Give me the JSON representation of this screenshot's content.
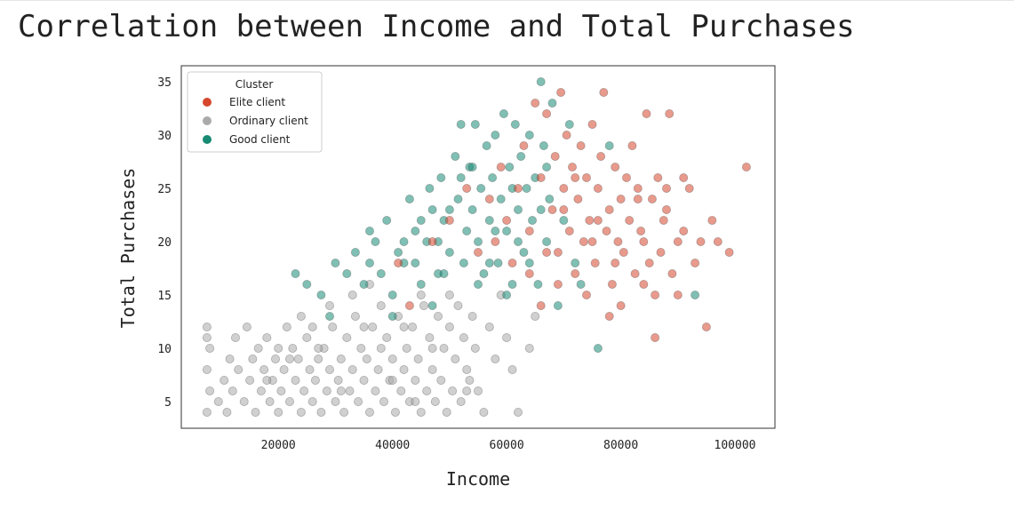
{
  "chart_data": {
    "type": "scatter",
    "title": "Correlation between Income and Total Purchases",
    "xlabel": "Income",
    "ylabel": "Total Purchases",
    "xlim": [
      3000,
      107000
    ],
    "ylim": [
      2.5,
      36.5
    ],
    "xticks": [
      20000,
      40000,
      60000,
      80000,
      100000
    ],
    "yticks": [
      5,
      10,
      15,
      20,
      25,
      30,
      35
    ],
    "grid": false,
    "legend": {
      "title": "Cluster",
      "placement": "top-left"
    },
    "series": [
      {
        "name": "Ordinary client",
        "color": "#aaaaaa",
        "points": [
          [
            7500,
            4
          ],
          [
            8000,
            6
          ],
          [
            7500,
            8
          ],
          [
            8000,
            10
          ],
          [
            7500,
            11
          ],
          [
            7500,
            12
          ],
          [
            9500,
            5
          ],
          [
            10500,
            7
          ],
          [
            11000,
            4
          ],
          [
            11500,
            9
          ],
          [
            12000,
            6
          ],
          [
            12500,
            11
          ],
          [
            13000,
            8
          ],
          [
            14000,
            5
          ],
          [
            14500,
            12
          ],
          [
            15000,
            7
          ],
          [
            15500,
            9
          ],
          [
            16000,
            4
          ],
          [
            16500,
            10
          ],
          [
            17000,
            6
          ],
          [
            17500,
            8
          ],
          [
            18000,
            11
          ],
          [
            18500,
            5
          ],
          [
            19000,
            7
          ],
          [
            19500,
            9
          ],
          [
            20000,
            4
          ],
          [
            20500,
            6
          ],
          [
            21000,
            8
          ],
          [
            21500,
            12
          ],
          [
            22000,
            5
          ],
          [
            22500,
            10
          ],
          [
            23000,
            7
          ],
          [
            23500,
            9
          ],
          [
            24000,
            4
          ],
          [
            24500,
            6
          ],
          [
            25000,
            11
          ],
          [
            25500,
            8
          ],
          [
            26000,
            5
          ],
          [
            26500,
            7
          ],
          [
            27000,
            9
          ],
          [
            27500,
            4
          ],
          [
            28000,
            10
          ],
          [
            28500,
            6
          ],
          [
            29000,
            8
          ],
          [
            29500,
            12
          ],
          [
            30000,
            5
          ],
          [
            30500,
            7
          ],
          [
            31000,
            9
          ],
          [
            31500,
            4
          ],
          [
            32000,
            11
          ],
          [
            32500,
            6
          ],
          [
            33000,
            8
          ],
          [
            33500,
            13
          ],
          [
            34000,
            5
          ],
          [
            34500,
            10
          ],
          [
            35000,
            7
          ],
          [
            35500,
            9
          ],
          [
            36000,
            4
          ],
          [
            36500,
            12
          ],
          [
            37000,
            6
          ],
          [
            37500,
            8
          ],
          [
            38000,
            14
          ],
          [
            38500,
            5
          ],
          [
            39000,
            11
          ],
          [
            39500,
            7
          ],
          [
            40000,
            9
          ],
          [
            40500,
            4
          ],
          [
            41000,
            13
          ],
          [
            41500,
            6
          ],
          [
            42000,
            8
          ],
          [
            42500,
            10
          ],
          [
            43000,
            5
          ],
          [
            43500,
            12
          ],
          [
            44000,
            7
          ],
          [
            44500,
            9
          ],
          [
            45000,
            4
          ],
          [
            45500,
            14
          ],
          [
            46000,
            6
          ],
          [
            46500,
            11
          ],
          [
            47000,
            8
          ],
          [
            47500,
            5
          ],
          [
            48000,
            13
          ],
          [
            48500,
            7
          ],
          [
            49000,
            10
          ],
          [
            49500,
            4
          ],
          [
            50000,
            12
          ],
          [
            50500,
            6
          ],
          [
            51000,
            9
          ],
          [
            51500,
            14
          ],
          [
            52000,
            5
          ],
          [
            52500,
            11
          ],
          [
            53000,
            8
          ],
          [
            53500,
            7
          ],
          [
            54000,
            13
          ],
          [
            54500,
            10
          ],
          [
            55000,
            6
          ],
          [
            56000,
            4
          ],
          [
            57000,
            12
          ],
          [
            58000,
            9
          ],
          [
            59000,
            15
          ],
          [
            60000,
            11
          ],
          [
            61000,
            8
          ],
          [
            62000,
            4
          ],
          [
            64000,
            10
          ],
          [
            65000,
            13
          ],
          [
            33000,
            15
          ],
          [
            36000,
            16
          ],
          [
            29000,
            14
          ],
          [
            24000,
            13
          ],
          [
            45000,
            15
          ],
          [
            50000,
            15
          ],
          [
            27000,
            10
          ],
          [
            40000,
            7
          ],
          [
            18000,
            7
          ],
          [
            22000,
            9
          ],
          [
            31000,
            6
          ],
          [
            38000,
            10
          ],
          [
            42000,
            12
          ],
          [
            47000,
            10
          ],
          [
            53000,
            6
          ],
          [
            35000,
            12
          ],
          [
            26000,
            12
          ],
          [
            20000,
            10
          ],
          [
            44000,
            5
          ]
        ]
      },
      {
        "name": "Good client",
        "color": "#178a74",
        "points": [
          [
            23000,
            17
          ],
          [
            25000,
            16
          ],
          [
            27500,
            15
          ],
          [
            29000,
            13
          ],
          [
            30000,
            18
          ],
          [
            32000,
            17
          ],
          [
            33500,
            19
          ],
          [
            35000,
            16
          ],
          [
            36000,
            21
          ],
          [
            37000,
            20
          ],
          [
            38000,
            17
          ],
          [
            39000,
            22
          ],
          [
            40000,
            15
          ],
          [
            41000,
            19
          ],
          [
            42000,
            18
          ],
          [
            43000,
            24
          ],
          [
            44000,
            21
          ],
          [
            45000,
            16
          ],
          [
            46000,
            20
          ],
          [
            46500,
            25
          ],
          [
            47000,
            23
          ],
          [
            48000,
            17
          ],
          [
            48500,
            26
          ],
          [
            49000,
            22
          ],
          [
            50000,
            19
          ],
          [
            51000,
            28
          ],
          [
            51500,
            24
          ],
          [
            52000,
            31
          ],
          [
            52500,
            18
          ],
          [
            53000,
            21
          ],
          [
            53500,
            27
          ],
          [
            54000,
            23
          ],
          [
            54500,
            31
          ],
          [
            55000,
            20
          ],
          [
            55500,
            25
          ],
          [
            56000,
            17
          ],
          [
            56500,
            29
          ],
          [
            57000,
            22
          ],
          [
            57500,
            26
          ],
          [
            58000,
            30
          ],
          [
            58500,
            18
          ],
          [
            59000,
            24
          ],
          [
            59500,
            32
          ],
          [
            60000,
            21
          ],
          [
            60500,
            27
          ],
          [
            61000,
            16
          ],
          [
            61500,
            31
          ],
          [
            62000,
            23
          ],
          [
            62500,
            28
          ],
          [
            63000,
            19
          ],
          [
            63500,
            25
          ],
          [
            64000,
            30
          ],
          [
            64500,
            22
          ],
          [
            65000,
            26
          ],
          [
            65500,
            16
          ],
          [
            66000,
            35
          ],
          [
            66500,
            29
          ],
          [
            67000,
            20
          ],
          [
            67500,
            24
          ],
          [
            68000,
            33
          ],
          [
            69000,
            14
          ],
          [
            70000,
            22
          ],
          [
            71000,
            31
          ],
          [
            72000,
            18
          ],
          [
            73000,
            16
          ],
          [
            76000,
            10
          ],
          [
            78000,
            29
          ],
          [
            93000,
            15
          ],
          [
            40000,
            13
          ],
          [
            47000,
            14
          ],
          [
            44000,
            18
          ],
          [
            50000,
            23
          ],
          [
            55000,
            16
          ],
          [
            58000,
            21
          ],
          [
            61000,
            25
          ],
          [
            64000,
            18
          ],
          [
            67000,
            27
          ],
          [
            36000,
            18
          ],
          [
            42000,
            20
          ],
          [
            52000,
            26
          ],
          [
            57000,
            18
          ],
          [
            60000,
            15
          ],
          [
            45000,
            22
          ],
          [
            49000,
            17
          ],
          [
            62000,
            20
          ],
          [
            54000,
            27
          ],
          [
            48000,
            20
          ],
          [
            66000,
            23
          ]
        ]
      },
      {
        "name": "Elite client",
        "color": "#d6472e",
        "points": [
          [
            41000,
            18
          ],
          [
            43000,
            14
          ],
          [
            47000,
            20
          ],
          [
            50000,
            22
          ],
          [
            53000,
            25
          ],
          [
            55000,
            19
          ],
          [
            57000,
            24
          ],
          [
            58000,
            20
          ],
          [
            59000,
            27
          ],
          [
            60000,
            22
          ],
          [
            61000,
            18
          ],
          [
            62000,
            25
          ],
          [
            63000,
            29
          ],
          [
            64000,
            21
          ],
          [
            65000,
            33
          ],
          [
            66000,
            26
          ],
          [
            67000,
            32
          ],
          [
            68000,
            23
          ],
          [
            68500,
            28
          ],
          [
            69000,
            19
          ],
          [
            69500,
            34
          ],
          [
            70000,
            25
          ],
          [
            70500,
            30
          ],
          [
            71000,
            21
          ],
          [
            71500,
            27
          ],
          [
            72000,
            17
          ],
          [
            72500,
            24
          ],
          [
            73000,
            29
          ],
          [
            73500,
            20
          ],
          [
            74000,
            26
          ],
          [
            74500,
            22
          ],
          [
            75000,
            31
          ],
          [
            75500,
            18
          ],
          [
            76000,
            25
          ],
          [
            76500,
            28
          ],
          [
            77000,
            34
          ],
          [
            77500,
            21
          ],
          [
            78000,
            23
          ],
          [
            78500,
            16
          ],
          [
            79000,
            27
          ],
          [
            79500,
            20
          ],
          [
            80000,
            24
          ],
          [
            80500,
            19
          ],
          [
            81000,
            26
          ],
          [
            81500,
            22
          ],
          [
            82000,
            29
          ],
          [
            82500,
            17
          ],
          [
            83000,
            25
          ],
          [
            83500,
            21
          ],
          [
            84000,
            20
          ],
          [
            84500,
            32
          ],
          [
            85000,
            18
          ],
          [
            85500,
            24
          ],
          [
            86000,
            11
          ],
          [
            86500,
            26
          ],
          [
            87000,
            19
          ],
          [
            87500,
            22
          ],
          [
            88000,
            25
          ],
          [
            88500,
            32
          ],
          [
            89000,
            17
          ],
          [
            90000,
            15
          ],
          [
            91000,
            21
          ],
          [
            92000,
            25
          ],
          [
            93000,
            18
          ],
          [
            94000,
            20
          ],
          [
            95000,
            12
          ],
          [
            96000,
            22
          ],
          [
            97000,
            20
          ],
          [
            99000,
            19
          ],
          [
            102000,
            27
          ],
          [
            66000,
            14
          ],
          [
            69000,
            16
          ],
          [
            74000,
            15
          ],
          [
            78000,
            13
          ],
          [
            80000,
            14
          ],
          [
            84000,
            16
          ],
          [
            86000,
            15
          ],
          [
            90000,
            20
          ],
          [
            88000,
            23
          ],
          [
            91000,
            26
          ],
          [
            76000,
            22
          ],
          [
            72000,
            26
          ],
          [
            79000,
            18
          ],
          [
            83000,
            24
          ],
          [
            70000,
            23
          ],
          [
            67000,
            19
          ],
          [
            64000,
            17
          ],
          [
            75000,
            20
          ]
        ]
      }
    ]
  }
}
